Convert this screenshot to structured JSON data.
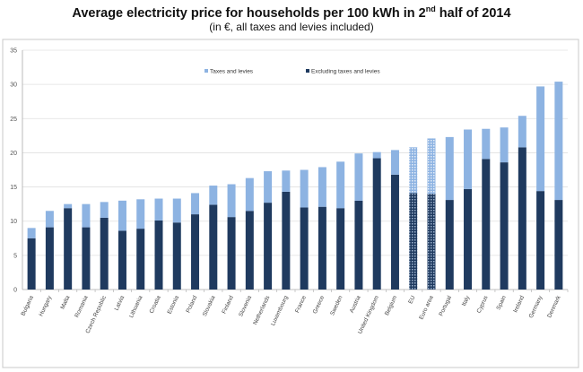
{
  "title": {
    "main": "Average electricity price for households per 100 kWh in 2",
    "sup": "nd",
    "end": " half of 2014"
  },
  "subtitle": "(in €, all taxes and levies included)",
  "chart_data": {
    "type": "bar",
    "stacked": true,
    "categories": [
      "Bulgaria",
      "Hungary",
      "Malta",
      "Romania",
      "Czech Republic",
      "Latvia",
      "Lithuania",
      "Croatia",
      "Estonia",
      "Poland",
      "Slovakia",
      "Finland",
      "Slovenia",
      "Netherlands",
      "Luxembourg",
      "France",
      "Greece",
      "Sweden",
      "Austria",
      "United Kingdom",
      "Belgium",
      "EU",
      "Euro area",
      "Portugal",
      "Italy",
      "Cyprus",
      "Spain",
      "Ireland",
      "Germany",
      "Denmark"
    ],
    "series": [
      {
        "name": "Excluding taxes and levies",
        "color": "#1f3a5f",
        "values": [
          7.5,
          9.1,
          11.9,
          9.1,
          10.5,
          8.6,
          8.9,
          10.1,
          9.8,
          11.0,
          12.4,
          10.6,
          11.5,
          12.7,
          14.3,
          12.0,
          12.1,
          11.9,
          13.0,
          19.2,
          16.8,
          14.1,
          14.0,
          13.1,
          14.7,
          19.1,
          18.6,
          20.8,
          14.4,
          13.1
        ]
      },
      {
        "name": "Taxes and levies",
        "color": "#8db3e2",
        "values": [
          1.5,
          2.4,
          0.6,
          3.4,
          2.3,
          4.4,
          4.3,
          3.2,
          3.5,
          3.1,
          2.8,
          4.8,
          4.8,
          4.6,
          3.1,
          5.5,
          5.8,
          6.8,
          6.9,
          0.9,
          3.6,
          6.7,
          8.1,
          9.2,
          8.7,
          4.4,
          5.1,
          4.6,
          15.3,
          17.3
        ]
      }
    ],
    "hatched_categories": [
      "EU",
      "Euro area"
    ],
    "ylim": [
      0,
      35
    ],
    "yticks": [
      0,
      5,
      10,
      15,
      20,
      25,
      30,
      35
    ],
    "grid": true,
    "legend_placement": "top-center",
    "xlabel": "",
    "ylabel": ""
  }
}
